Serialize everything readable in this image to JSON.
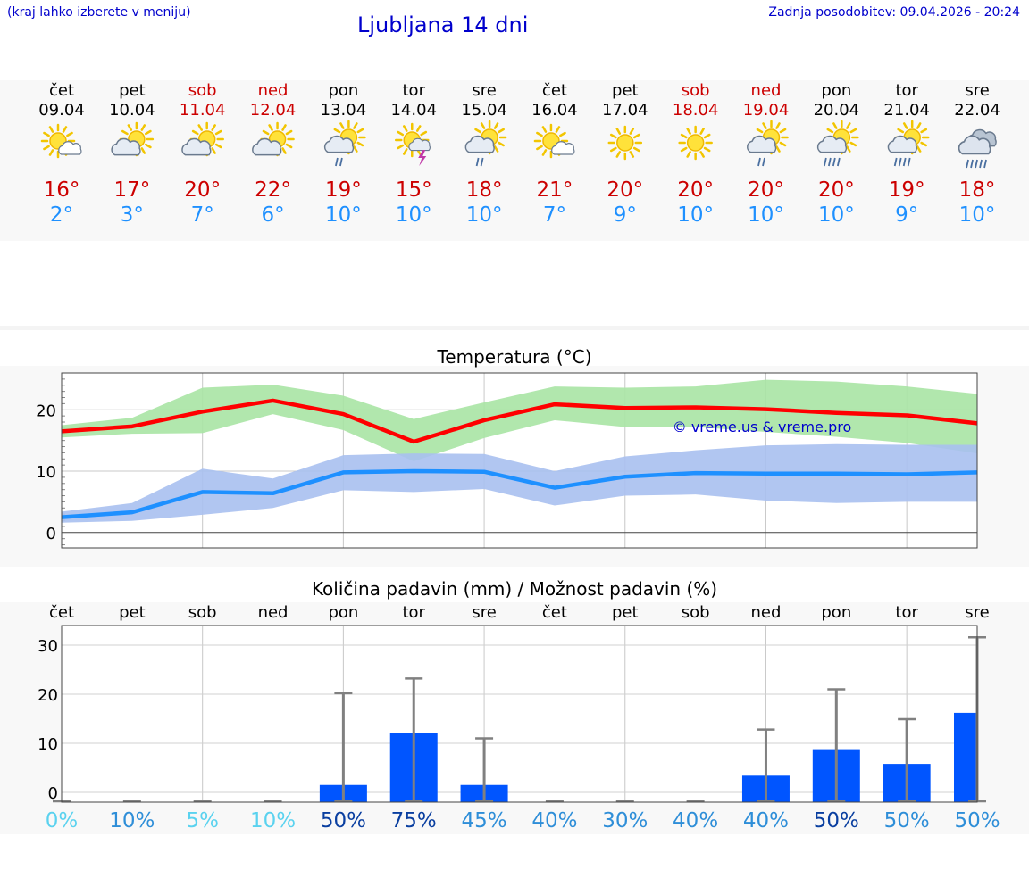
{
  "header": {
    "menu_hint": "(kraj lahko izberete v meniju)",
    "title": "Ljubljana 14 dni",
    "last_update": "Zadnja posodobitev: 09.04.2026 - 20:24"
  },
  "colors": {
    "weekday": "#000000",
    "weekend": "#cc0000",
    "temp_max": "#cc0000",
    "temp_min": "#1e90ff",
    "max_line": "#ff0000",
    "max_band": "#a8e4a4",
    "min_line": "#1e90ff",
    "min_band": "#a8c0ef",
    "precip_bar": "#0055ff",
    "error_bar": "#808080",
    "watermark": "#0000cc"
  },
  "days": [
    {
      "day": "čet",
      "date": "09.04",
      "icon": "sun-partly-cloudy-icon",
      "tmax": "16°",
      "tmin": "2°",
      "weekend": false
    },
    {
      "day": "pet",
      "date": "10.04",
      "icon": "sun-cloud-icon",
      "tmax": "17°",
      "tmin": "3°",
      "weekend": false
    },
    {
      "day": "sob",
      "date": "11.04",
      "icon": "sun-cloud-icon",
      "tmax": "20°",
      "tmin": "7°",
      "weekend": true
    },
    {
      "day": "ned",
      "date": "12.04",
      "icon": "sun-cloud-icon",
      "tmax": "22°",
      "tmin": "6°",
      "weekend": true
    },
    {
      "day": "pon",
      "date": "13.04",
      "icon": "sun-cloud-rain-icon",
      "tmax": "19°",
      "tmin": "10°",
      "weekend": false
    },
    {
      "day": "tor",
      "date": "14.04",
      "icon": "sun-thunder-icon",
      "tmax": "15°",
      "tmin": "10°",
      "weekend": false
    },
    {
      "day": "sre",
      "date": "15.04",
      "icon": "sun-cloud-rain-icon",
      "tmax": "18°",
      "tmin": "10°",
      "weekend": false
    },
    {
      "day": "čet",
      "date": "16.04",
      "icon": "sun-partly-cloudy-icon",
      "tmax": "21°",
      "tmin": "7°",
      "weekend": false
    },
    {
      "day": "pet",
      "date": "17.04",
      "icon": "sun-icon",
      "tmax": "20°",
      "tmin": "9°",
      "weekend": false
    },
    {
      "day": "sob",
      "date": "18.04",
      "icon": "sun-icon",
      "tmax": "20°",
      "tmin": "10°",
      "weekend": true
    },
    {
      "day": "ned",
      "date": "19.04",
      "icon": "sun-cloud-rain-icon",
      "tmax": "20°",
      "tmin": "10°",
      "weekend": true
    },
    {
      "day": "pon",
      "date": "20.04",
      "icon": "sun-cloud-heavy-rain-icon",
      "tmax": "20°",
      "tmin": "10°",
      "weekend": false
    },
    {
      "day": "tor",
      "date": "21.04",
      "icon": "sun-cloud-heavy-rain-icon",
      "tmax": "19°",
      "tmin": "9°",
      "weekend": false
    },
    {
      "day": "sre",
      "date": "22.04",
      "icon": "cloud-heavy-rain-icon",
      "tmax": "18°",
      "tmin": "10°",
      "weekend": false
    }
  ],
  "chart_data": [
    {
      "type": "line",
      "title": "Temperatura (°C)",
      "xlabel": "",
      "ylabel": "",
      "ylim": [
        -2.5,
        26
      ],
      "yticks": [
        0,
        10,
        20
      ],
      "grid": true,
      "x": [
        "09.04",
        "10.04",
        "11.04",
        "12.04",
        "13.04",
        "14.04",
        "15.04",
        "16.04",
        "17.04",
        "18.04",
        "19.04",
        "20.04",
        "21.04",
        "22.04"
      ],
      "series": [
        {
          "name": "max",
          "values": [
            16.5,
            17.3,
            19.7,
            21.5,
            19.3,
            14.8,
            18.3,
            20.9,
            20.3,
            20.4,
            20.1,
            19.5,
            19.1,
            17.8
          ],
          "band_low": [
            15.5,
            16.1,
            16.2,
            19.3,
            16.7,
            11.6,
            15.4,
            18.3,
            17.2,
            17.2,
            16.4,
            15.6,
            14.6,
            12.9
          ],
          "band_high": [
            17.5,
            18.7,
            23.6,
            24.1,
            22.3,
            18.5,
            21.2,
            23.8,
            23.6,
            23.8,
            24.9,
            24.6,
            23.8,
            22.6
          ]
        },
        {
          "name": "min",
          "values": [
            2.5,
            3.3,
            6.6,
            6.4,
            9.8,
            10.0,
            9.9,
            7.3,
            9.1,
            9.7,
            9.6,
            9.6,
            9.5,
            9.8
          ],
          "band_low": [
            1.6,
            1.9,
            2.9,
            4.0,
            6.9,
            6.6,
            7.1,
            4.4,
            6.0,
            6.2,
            5.2,
            4.8,
            5.0,
            5.0
          ],
          "band_high": [
            3.4,
            4.8,
            10.4,
            8.8,
            12.6,
            12.9,
            12.8,
            10.0,
            12.4,
            13.4,
            14.2,
            14.4,
            14.3,
            14.3
          ]
        }
      ],
      "watermark": "© vreme.us & vreme.pro"
    },
    {
      "type": "bar",
      "title": "Količina padavin (mm) / Možnost padavin (%)",
      "xlabel": "",
      "ylabel": "",
      "ylim": [
        -2,
        34
      ],
      "yticks": [
        0,
        10,
        20,
        30
      ],
      "grid": true,
      "categories": [
        "čet",
        "pet",
        "sob",
        "ned",
        "pon",
        "tor",
        "sre",
        "čet",
        "pet",
        "sob",
        "ned",
        "pon",
        "tor",
        "sre"
      ],
      "values": [
        0,
        0,
        0,
        0,
        1.5,
        12,
        1.5,
        0,
        0,
        0,
        3.4,
        8.8,
        5.8,
        16.2
      ],
      "error_high": [
        0,
        0,
        0,
        0,
        20.2,
        23.2,
        11.0,
        0,
        0,
        0,
        12.8,
        21.0,
        14.9,
        31.6
      ],
      "probability": [
        "0%",
        "10%",
        "5%",
        "10%",
        "50%",
        "75%",
        "45%",
        "40%",
        "30%",
        "40%",
        "40%",
        "50%",
        "50%",
        "50%"
      ],
      "probability_colors": [
        "#5ad2ef",
        "#2e8ed8",
        "#5ad2ef",
        "#5ad2ef",
        "#0a3fa0",
        "#0a3fa0",
        "#2e8ed8",
        "#2e8ed8",
        "#2e8ed8",
        "#2e8ed8",
        "#2e8ed8",
        "#0a3fa0",
        "#2e8ed8",
        "#2e8ed8"
      ]
    }
  ]
}
